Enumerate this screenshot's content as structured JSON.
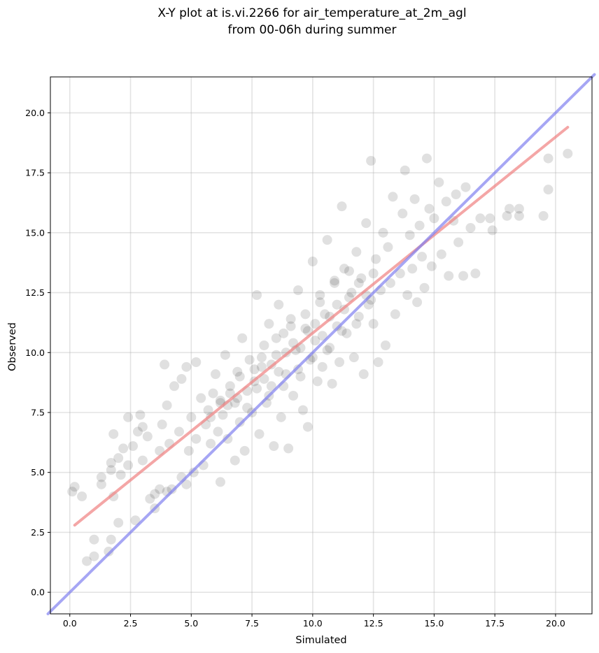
{
  "chart_data": {
    "type": "scatter",
    "title_line1": "X-Y plot at is.vi.2266 for air_temperature_at_2m_agl",
    "title_line2": "from 00-06h during summer",
    "xlabel": "Simulated",
    "ylabel": "Observed",
    "xlim": [
      -0.8,
      21.5
    ],
    "ylim": [
      -0.9,
      21.5
    ],
    "xticks": [
      0.0,
      2.5,
      5.0,
      7.5,
      10.0,
      12.5,
      15.0,
      17.5,
      20.0
    ],
    "yticks": [
      0.0,
      2.5,
      5.0,
      7.5,
      10.0,
      12.5,
      15.0,
      17.5,
      20.0
    ],
    "xtick_labels": [
      "0.0",
      "2.5",
      "5.0",
      "7.5",
      "10.0",
      "12.5",
      "15.0",
      "17.5",
      "20.0"
    ],
    "ytick_labels": [
      "0.0",
      "2.5",
      "5.0",
      "7.5",
      "10.0",
      "12.5",
      "15.0",
      "17.5",
      "20.0"
    ],
    "grid": true,
    "points_color": "#000000",
    "points_opacity": 0.12,
    "points": [
      [
        0.2,
        4.4
      ],
      [
        0.1,
        4.2
      ],
      [
        0.5,
        4.0
      ],
      [
        0.7,
        1.3
      ],
      [
        1.0,
        1.5
      ],
      [
        1.0,
        2.2
      ],
      [
        1.3,
        4.5
      ],
      [
        1.3,
        4.8
      ],
      [
        1.6,
        1.7
      ],
      [
        1.7,
        2.2
      ],
      [
        1.8,
        4.0
      ],
      [
        1.7,
        5.1
      ],
      [
        1.7,
        5.4
      ],
      [
        1.8,
        6.6
      ],
      [
        2.0,
        2.9
      ],
      [
        2.0,
        5.6
      ],
      [
        2.1,
        4.9
      ],
      [
        2.2,
        6.0
      ],
      [
        2.4,
        5.3
      ],
      [
        2.4,
        7.3
      ],
      [
        2.6,
        6.1
      ],
      [
        2.7,
        3.0
      ],
      [
        2.8,
        6.7
      ],
      [
        2.9,
        7.4
      ],
      [
        3.0,
        5.5
      ],
      [
        3.0,
        6.9
      ],
      [
        3.2,
        6.5
      ],
      [
        3.3,
        3.9
      ],
      [
        3.5,
        4.1
      ],
      [
        3.5,
        3.5
      ],
      [
        3.7,
        4.3
      ],
      [
        3.7,
        5.9
      ],
      [
        3.8,
        7.0
      ],
      [
        3.9,
        9.5
      ],
      [
        4.0,
        4.2
      ],
      [
        4.0,
        7.8
      ],
      [
        4.1,
        6.2
      ],
      [
        4.2,
        4.3
      ],
      [
        4.3,
        8.6
      ],
      [
        4.5,
        6.7
      ],
      [
        4.6,
        4.8
      ],
      [
        4.6,
        8.9
      ],
      [
        4.8,
        4.5
      ],
      [
        4.8,
        9.4
      ],
      [
        4.9,
        5.9
      ],
      [
        5.0,
        7.3
      ],
      [
        5.1,
        5.0
      ],
      [
        5.2,
        9.6
      ],
      [
        5.2,
        6.4
      ],
      [
        5.4,
        8.1
      ],
      [
        5.5,
        5.3
      ],
      [
        5.6,
        7.0
      ],
      [
        5.7,
        7.6
      ],
      [
        5.8,
        6.2
      ],
      [
        5.9,
        8.3
      ],
      [
        6.0,
        9.1
      ],
      [
        6.1,
        6.7
      ],
      [
        6.2,
        4.6
      ],
      [
        6.2,
        8.0
      ],
      [
        6.3,
        7.4
      ],
      [
        6.4,
        9.9
      ],
      [
        6.5,
        6.4
      ],
      [
        6.6,
        8.6
      ],
      [
        6.8,
        7.9
      ],
      [
        6.8,
        5.5
      ],
      [
        6.9,
        9.2
      ],
      [
        7.0,
        7.1
      ],
      [
        7.1,
        10.6
      ],
      [
        7.2,
        5.9
      ],
      [
        7.3,
        8.4
      ],
      [
        7.4,
        9.7
      ],
      [
        7.5,
        7.5
      ],
      [
        7.6,
        8.8
      ],
      [
        7.7,
        12.4
      ],
      [
        7.8,
        6.6
      ],
      [
        7.9,
        9.4
      ],
      [
        8.0,
        10.3
      ],
      [
        8.1,
        7.9
      ],
      [
        8.2,
        11.2
      ],
      [
        8.3,
        8.6
      ],
      [
        8.4,
        6.1
      ],
      [
        8.5,
        9.9
      ],
      [
        8.6,
        12.0
      ],
      [
        8.7,
        7.3
      ],
      [
        8.8,
        10.8
      ],
      [
        8.9,
        9.1
      ],
      [
        9.0,
        6.0
      ],
      [
        9.1,
        11.4
      ],
      [
        9.2,
        8.2
      ],
      [
        9.3,
        10.1
      ],
      [
        9.4,
        12.6
      ],
      [
        9.5,
        9.0
      ],
      [
        9.6,
        7.6
      ],
      [
        9.7,
        11.0
      ],
      [
        9.8,
        6.9
      ],
      [
        9.9,
        9.7
      ],
      [
        10.0,
        13.8
      ],
      [
        10.1,
        10.5
      ],
      [
        10.2,
        8.8
      ],
      [
        10.3,
        12.1
      ],
      [
        10.4,
        9.4
      ],
      [
        10.5,
        11.6
      ],
      [
        10.6,
        14.7
      ],
      [
        10.7,
        10.2
      ],
      [
        10.8,
        8.7
      ],
      [
        10.9,
        12.9
      ],
      [
        11.0,
        11.1
      ],
      [
        11.1,
        9.6
      ],
      [
        11.2,
        16.1
      ],
      [
        11.3,
        13.5
      ],
      [
        11.4,
        10.8
      ],
      [
        11.5,
        12.3
      ],
      [
        11.7,
        9.8
      ],
      [
        11.8,
        14.2
      ],
      [
        11.9,
        11.5
      ],
      [
        12.0,
        13.1
      ],
      [
        12.1,
        9.1
      ],
      [
        12.2,
        15.4
      ],
      [
        12.3,
        12.0
      ],
      [
        12.4,
        18.0
      ],
      [
        12.5,
        11.2
      ],
      [
        12.6,
        13.9
      ],
      [
        12.7,
        9.6
      ],
      [
        12.8,
        12.6
      ],
      [
        12.9,
        15.0
      ],
      [
        13.0,
        10.3
      ],
      [
        13.1,
        14.4
      ],
      [
        13.2,
        12.9
      ],
      [
        13.3,
        16.5
      ],
      [
        13.4,
        11.6
      ],
      [
        13.6,
        13.3
      ],
      [
        13.7,
        15.8
      ],
      [
        13.8,
        17.6
      ],
      [
        13.9,
        12.4
      ],
      [
        14.0,
        14.9
      ],
      [
        14.1,
        13.5
      ],
      [
        14.2,
        16.4
      ],
      [
        14.3,
        12.1
      ],
      [
        14.4,
        15.3
      ],
      [
        14.5,
        14.0
      ],
      [
        14.6,
        12.7
      ],
      [
        14.7,
        18.1
      ],
      [
        14.8,
        16.0
      ],
      [
        14.9,
        13.6
      ],
      [
        15.0,
        15.6
      ],
      [
        15.2,
        17.1
      ],
      [
        15.3,
        14.1
      ],
      [
        15.5,
        16.3
      ],
      [
        15.6,
        13.2
      ],
      [
        15.8,
        15.5
      ],
      [
        15.9,
        16.6
      ],
      [
        16.0,
        14.6
      ],
      [
        16.2,
        13.2
      ],
      [
        16.3,
        16.9
      ],
      [
        16.5,
        15.2
      ],
      [
        16.7,
        13.3
      ],
      [
        16.9,
        15.6
      ],
      [
        17.3,
        15.6
      ],
      [
        17.4,
        15.1
      ],
      [
        18.0,
        15.7
      ],
      [
        18.1,
        16.0
      ],
      [
        18.5,
        16.0
      ],
      [
        18.5,
        15.7
      ],
      [
        19.5,
        15.7
      ],
      [
        19.7,
        18.1
      ],
      [
        19.7,
        16.8
      ],
      [
        20.5,
        18.3
      ],
      [
        6.5,
        7.8
      ],
      [
        6.9,
        8.1
      ],
      [
        7.3,
        7.7
      ],
      [
        7.7,
        8.5
      ],
      [
        8.0,
        8.9
      ],
      [
        8.3,
        9.5
      ],
      [
        8.6,
        9.2
      ],
      [
        8.9,
        10.0
      ],
      [
        9.2,
        10.4
      ],
      [
        9.5,
        10.2
      ],
      [
        9.8,
        10.9
      ],
      [
        10.1,
        11.2
      ],
      [
        10.4,
        10.7
      ],
      [
        10.7,
        11.5
      ],
      [
        11.0,
        12.0
      ],
      [
        11.3,
        11.8
      ],
      [
        11.6,
        12.5
      ],
      [
        11.9,
        12.9
      ],
      [
        12.2,
        12.4
      ],
      [
        12.5,
        13.3
      ],
      [
        7.0,
        9.0
      ],
      [
        7.6,
        9.3
      ],
      [
        8.2,
        8.2
      ],
      [
        8.8,
        8.6
      ],
      [
        9.4,
        9.3
      ],
      [
        10.0,
        9.8
      ],
      [
        10.6,
        10.1
      ],
      [
        11.2,
        10.9
      ],
      [
        11.8,
        11.2
      ],
      [
        12.4,
        12.2
      ],
      [
        5.8,
        7.3
      ],
      [
        6.2,
        7.9
      ],
      [
        6.6,
        8.3
      ],
      [
        7.9,
        9.8
      ],
      [
        8.5,
        10.6
      ],
      [
        9.1,
        11.1
      ],
      [
        9.7,
        11.6
      ],
      [
        10.3,
        12.4
      ],
      [
        10.9,
        13.0
      ],
      [
        11.5,
        13.4
      ]
    ],
    "series": [
      {
        "type": "regression",
        "color": "#f08080",
        "x": [
          0.2,
          20.5
        ],
        "y": [
          2.8,
          19.4
        ]
      },
      {
        "type": "identity",
        "color": "#8080f0",
        "x": [
          -0.9,
          21.6
        ],
        "y": [
          -0.9,
          21.6
        ]
      }
    ]
  }
}
